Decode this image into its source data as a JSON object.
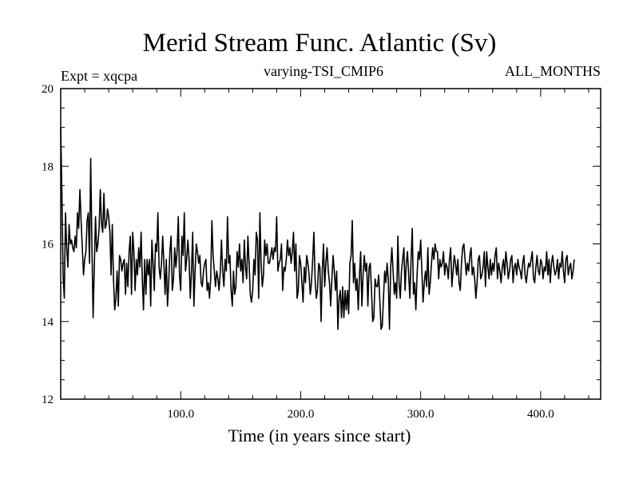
{
  "header": {
    "title": "Merid Stream Func. Atlantic (Sv)",
    "expt_label": "Expt = xqcpa",
    "subtitle": "varying-TSI_CMIP6",
    "months_label": "ALL_MONTHS"
  },
  "chart_data": {
    "type": "line",
    "title": "Merid Stream Func. Atlantic (Sv)",
    "xlabel": "Time (in years since start)",
    "ylabel": "",
    "xlim": [
      0,
      450
    ],
    "ylim": [
      12,
      20
    ],
    "x_ticks": [
      100,
      200,
      300,
      400
    ],
    "x_tick_labels": [
      "100.0",
      "200.0",
      "300.0",
      "400.0"
    ],
    "y_ticks": [
      12,
      14,
      16,
      18,
      20
    ],
    "y_tick_labels": [
      "12",
      "14",
      "16",
      "18",
      "20"
    ],
    "series": [
      {
        "name": "xqcpa",
        "color": "#000000",
        "x_start": 0,
        "x_step": 1,
        "values": [
          19.0,
          17.3,
          15.2,
          14.6,
          16.8,
          15.9,
          15.4,
          16.5,
          16.0,
          16.1,
          15.9,
          15.8,
          16.2,
          15.9,
          16.8,
          16.4,
          17.4,
          16.6,
          15.9,
          15.2,
          15.6,
          15.8,
          16.6,
          16.8,
          15.5,
          18.2,
          16.0,
          14.1,
          15.4,
          16.7,
          15.8,
          16.0,
          16.4,
          17.4,
          16.5,
          16.3,
          17.3,
          16.4,
          16.5,
          16.9,
          16.7,
          16.3,
          15.2,
          16.5,
          15.1,
          14.3,
          14.6,
          15.3,
          14.4,
          15.7,
          15.6,
          15.3,
          15.5,
          15.6,
          14.7,
          15.5,
          14.9,
          15.8,
          16.2,
          14.7,
          16.3,
          15.8,
          14.8,
          15.6,
          15.2,
          15.9,
          15.4,
          16.3,
          15.1,
          14.3,
          15.6,
          14.7,
          15.6,
          15.2,
          15.6,
          14.4,
          16.1,
          15.5,
          14.8,
          16.0,
          15.8,
          16.8,
          15.4,
          15.1,
          15.5,
          16.2,
          15.5,
          14.7,
          15.6,
          14.4,
          15.0,
          15.8,
          16.2,
          14.8,
          15.1,
          15.9,
          15.4,
          15.8,
          16.7,
          15.2,
          14.8,
          16.2,
          15.7,
          16.8,
          15.3,
          15.6,
          16.1,
          15.6,
          14.6,
          15.3,
          16.3,
          14.4,
          15.3,
          16.0,
          15.8,
          15.5,
          15.7,
          15.0,
          14.9,
          15.3,
          15.5,
          15.6,
          14.8,
          15.0,
          14.6,
          15.1,
          16.6,
          15.7,
          15.3,
          14.9,
          15.3,
          15.1,
          14.8,
          15.3,
          16.1,
          15.3,
          14.9,
          15.6,
          15.3,
          16.7,
          15.5,
          15.7,
          14.8,
          14.4,
          15.3,
          14.7,
          14.9,
          15.8,
          15.4,
          16.0,
          15.3,
          15.6,
          15.0,
          16.1,
          15.4,
          15.1,
          16.2,
          15.5,
          14.7,
          14.5,
          14.8,
          15.6,
          15.2,
          16.3,
          16.1,
          14.6,
          16.8,
          15.5,
          14.9,
          15.2,
          16.1,
          15.7,
          16.0,
          15.5,
          15.5,
          15.7,
          15.9,
          15.6,
          15.9,
          15.8,
          16.7,
          15.3,
          15.5,
          15.6,
          16.0,
          14.8,
          15.4,
          15.3,
          15.6,
          16.1,
          15.7,
          15.9,
          15.5,
          15.8,
          16.3,
          15.3,
          16.0,
          14.6,
          14.8,
          15.7,
          15.5,
          15.0,
          14.5,
          15.4,
          15.0,
          15.7,
          15.5,
          15.2,
          14.7,
          15.0,
          15.6,
          16.3,
          15.1,
          14.6,
          14.8,
          15.5,
          15.4,
          14.0,
          15.3,
          16.0,
          14.9,
          15.5,
          15.9,
          15.3,
          15.0,
          14.4,
          15.1,
          15.7,
          15.3,
          14.8,
          15.3,
          13.8,
          14.6,
          14.8,
          14.1,
          14.9,
          14.1,
          14.8,
          14.3,
          14.8,
          14.2,
          15.5,
          15.7,
          16.6,
          15.0,
          15.5,
          14.8,
          15.1,
          14.3,
          15.2,
          15.8,
          14.4,
          15.2,
          15.7,
          15.3,
          15.5,
          14.4,
          15.4,
          15.5,
          14.8,
          14.0,
          14.1,
          15.1,
          14.9,
          14.9,
          15.2,
          14.5,
          13.8,
          13.9,
          14.6,
          15.3,
          15.0,
          15.5,
          15.1,
          13.8,
          15.4,
          15.9,
          15.3,
          14.7,
          15.0,
          14.6,
          16.2,
          15.0,
          14.6,
          15.3,
          15.6,
          15.9,
          14.8,
          15.5,
          15.8,
          15.2,
          14.6,
          15.6,
          16.4,
          14.7,
          15.0,
          14.3,
          15.2,
          15.8,
          15.6,
          16.1,
          15.3,
          14.5,
          15.0,
          15.3,
          14.9,
          15.9,
          14.7,
          15.0,
          15.5,
          15.9,
          15.6,
          16.0,
          15.8,
          15.8,
          15.1,
          15.6,
          15.4,
          15.5,
          15.8,
          15.2,
          15.5,
          15.4,
          15.1,
          15.6,
          15.9,
          14.9,
          15.3,
          15.7,
          15.5,
          15.2,
          15.6,
          15.0,
          14.8,
          15.5,
          15.9,
          16.0,
          15.6,
          15.2,
          15.5,
          15.3,
          15.7,
          15.9,
          15.2,
          15.4,
          15.1,
          14.6,
          15.0,
          15.6,
          15.7,
          15.1,
          15.2,
          15.4,
          15.8,
          14.9,
          15.8,
          15.4,
          15.1,
          15.6,
          15.2,
          15.5,
          15.3,
          15.7,
          15.9,
          15.1,
          15.5,
          15.3,
          15.0,
          15.4,
          15.6,
          15.2,
          15.8,
          15.5,
          15.1,
          15.3,
          15.6,
          15.7,
          15.0,
          15.4,
          15.5,
          15.2,
          15.6,
          15.4,
          15.3,
          15.1,
          15.5,
          15.7,
          15.2,
          15.0,
          15.3,
          15.5,
          15.4,
          15.6,
          15.8,
          15.1,
          15.0,
          15.4,
          15.7,
          15.3,
          15.2,
          15.6,
          15.5,
          15.1,
          15.4,
          15.3,
          15.8,
          15.2,
          15.6,
          15.0,
          15.5,
          15.7,
          15.4,
          15.2,
          15.3,
          15.6,
          15.1,
          15.5,
          15.4,
          15.8,
          15.3,
          15.0,
          15.6,
          15.7,
          15.2,
          15.4,
          15.5,
          15.1,
          15.3,
          15.6
        ]
      }
    ]
  }
}
